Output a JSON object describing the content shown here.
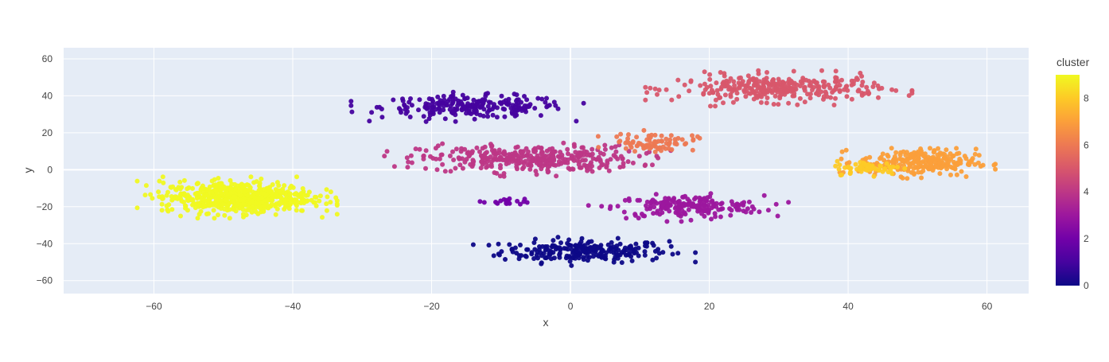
{
  "chart_data": {
    "type": "scatter",
    "xlabel": "x",
    "ylabel": "y",
    "xlim": [
      -73,
      66
    ],
    "ylim": [
      -67,
      66
    ],
    "x_ticks": [
      -60,
      -40,
      -20,
      0,
      20,
      40,
      60
    ],
    "y_ticks": [
      -60,
      -40,
      -20,
      0,
      20,
      40,
      60
    ],
    "grid": true,
    "colorbar": {
      "title": "cluster",
      "range": [
        0,
        9
      ],
      "ticks": [
        0,
        2,
        4,
        6,
        8
      ],
      "colorscale": [
        "#0d0887",
        "#46039f",
        "#7201a8",
        "#9c179e",
        "#bd3786",
        "#d8576b",
        "#ed7953",
        "#fb9f3a",
        "#fdca26",
        "#f0f921"
      ],
      "placement": "right"
    },
    "clusters": [
      {
        "cluster": 0,
        "center": [
          2,
          -44
        ],
        "spread": [
          10,
          5
        ],
        "count": 240
      },
      {
        "cluster": 1,
        "center": [
          -14,
          34
        ],
        "spread": [
          11,
          5
        ],
        "count": 230
      },
      {
        "cluster": 2,
        "center": [
          -9,
          -17
        ],
        "spread": [
          3,
          1.5
        ],
        "count": 20
      },
      {
        "cluster": 3,
        "center": [
          17,
          -20
        ],
        "spread": [
          9,
          5
        ],
        "count": 200
      },
      {
        "cluster": 4,
        "center": [
          -6,
          6
        ],
        "spread": [
          13,
          6
        ],
        "count": 360
      },
      {
        "cluster": 5,
        "center": [
          30,
          44
        ],
        "spread": [
          12,
          6
        ],
        "count": 330
      },
      {
        "cluster": 6,
        "center": [
          12,
          15
        ],
        "spread": [
          5,
          4
        ],
        "count": 80
      },
      {
        "cluster": 7,
        "center": [
          50,
          4
        ],
        "spread": [
          7,
          6
        ],
        "count": 260
      },
      {
        "cluster": 8,
        "center": [
          43,
          1
        ],
        "spread": [
          4,
          3
        ],
        "count": 60
      },
      {
        "cluster": 9,
        "center": [
          -48,
          -15
        ],
        "spread": [
          9,
          7
        ],
        "count": 620
      }
    ]
  }
}
